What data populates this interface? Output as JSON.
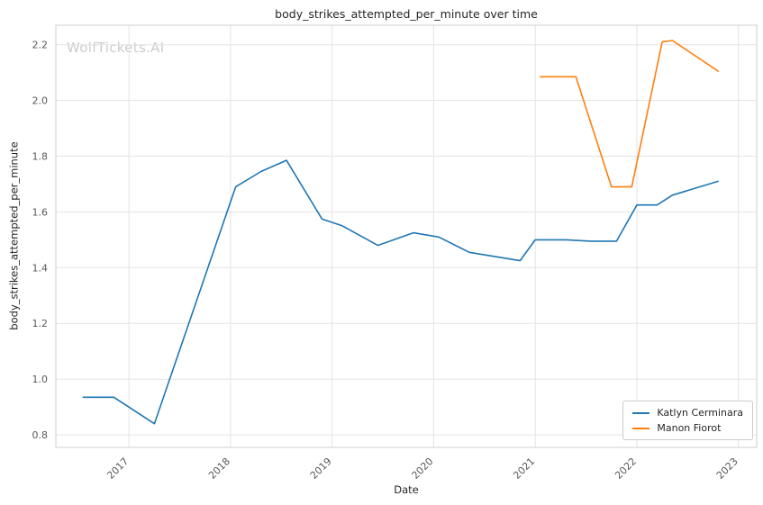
{
  "watermark": "WolfTickets.AI",
  "chart_data": {
    "type": "line",
    "title": "body_strikes_attempted_per_minute over time",
    "xlabel": "Date",
    "ylabel": "body_strikes_attempted_per_minute",
    "xlim": [
      2016.28,
      2023.18
    ],
    "ylim": [
      0.755,
      2.27
    ],
    "xticks": [
      2017,
      2018,
      2019,
      2020,
      2021,
      2022,
      2023
    ],
    "yticks": [
      0.8,
      1.0,
      1.2,
      1.4,
      1.6,
      1.8,
      2.0,
      2.2
    ],
    "grid": true,
    "legend_position": "lower right",
    "series": [
      {
        "name": "Katlyn Cerminara",
        "color": "#1f77b4",
        "points": [
          [
            2016.55,
            0.935
          ],
          [
            2016.85,
            0.935
          ],
          [
            2017.25,
            0.84
          ],
          [
            2018.05,
            1.69
          ],
          [
            2018.3,
            1.745
          ],
          [
            2018.55,
            1.785
          ],
          [
            2018.9,
            1.575
          ],
          [
            2019.1,
            1.55
          ],
          [
            2019.45,
            1.48
          ],
          [
            2019.8,
            1.525
          ],
          [
            2020.05,
            1.51
          ],
          [
            2020.35,
            1.455
          ],
          [
            2020.6,
            1.44
          ],
          [
            2020.85,
            1.425
          ],
          [
            2021.0,
            1.5
          ],
          [
            2021.3,
            1.5
          ],
          [
            2021.55,
            1.495
          ],
          [
            2021.8,
            1.495
          ],
          [
            2022.0,
            1.625
          ],
          [
            2022.2,
            1.625
          ],
          [
            2022.35,
            1.66
          ],
          [
            2022.8,
            1.71
          ]
        ]
      },
      {
        "name": "Manon Fiorot",
        "color": "#ff7f0e",
        "points": [
          [
            2021.05,
            2.085
          ],
          [
            2021.4,
            2.085
          ],
          [
            2021.75,
            1.69
          ],
          [
            2021.95,
            1.69
          ],
          [
            2022.25,
            2.21
          ],
          [
            2022.35,
            2.215
          ],
          [
            2022.8,
            2.105
          ]
        ]
      }
    ]
  }
}
